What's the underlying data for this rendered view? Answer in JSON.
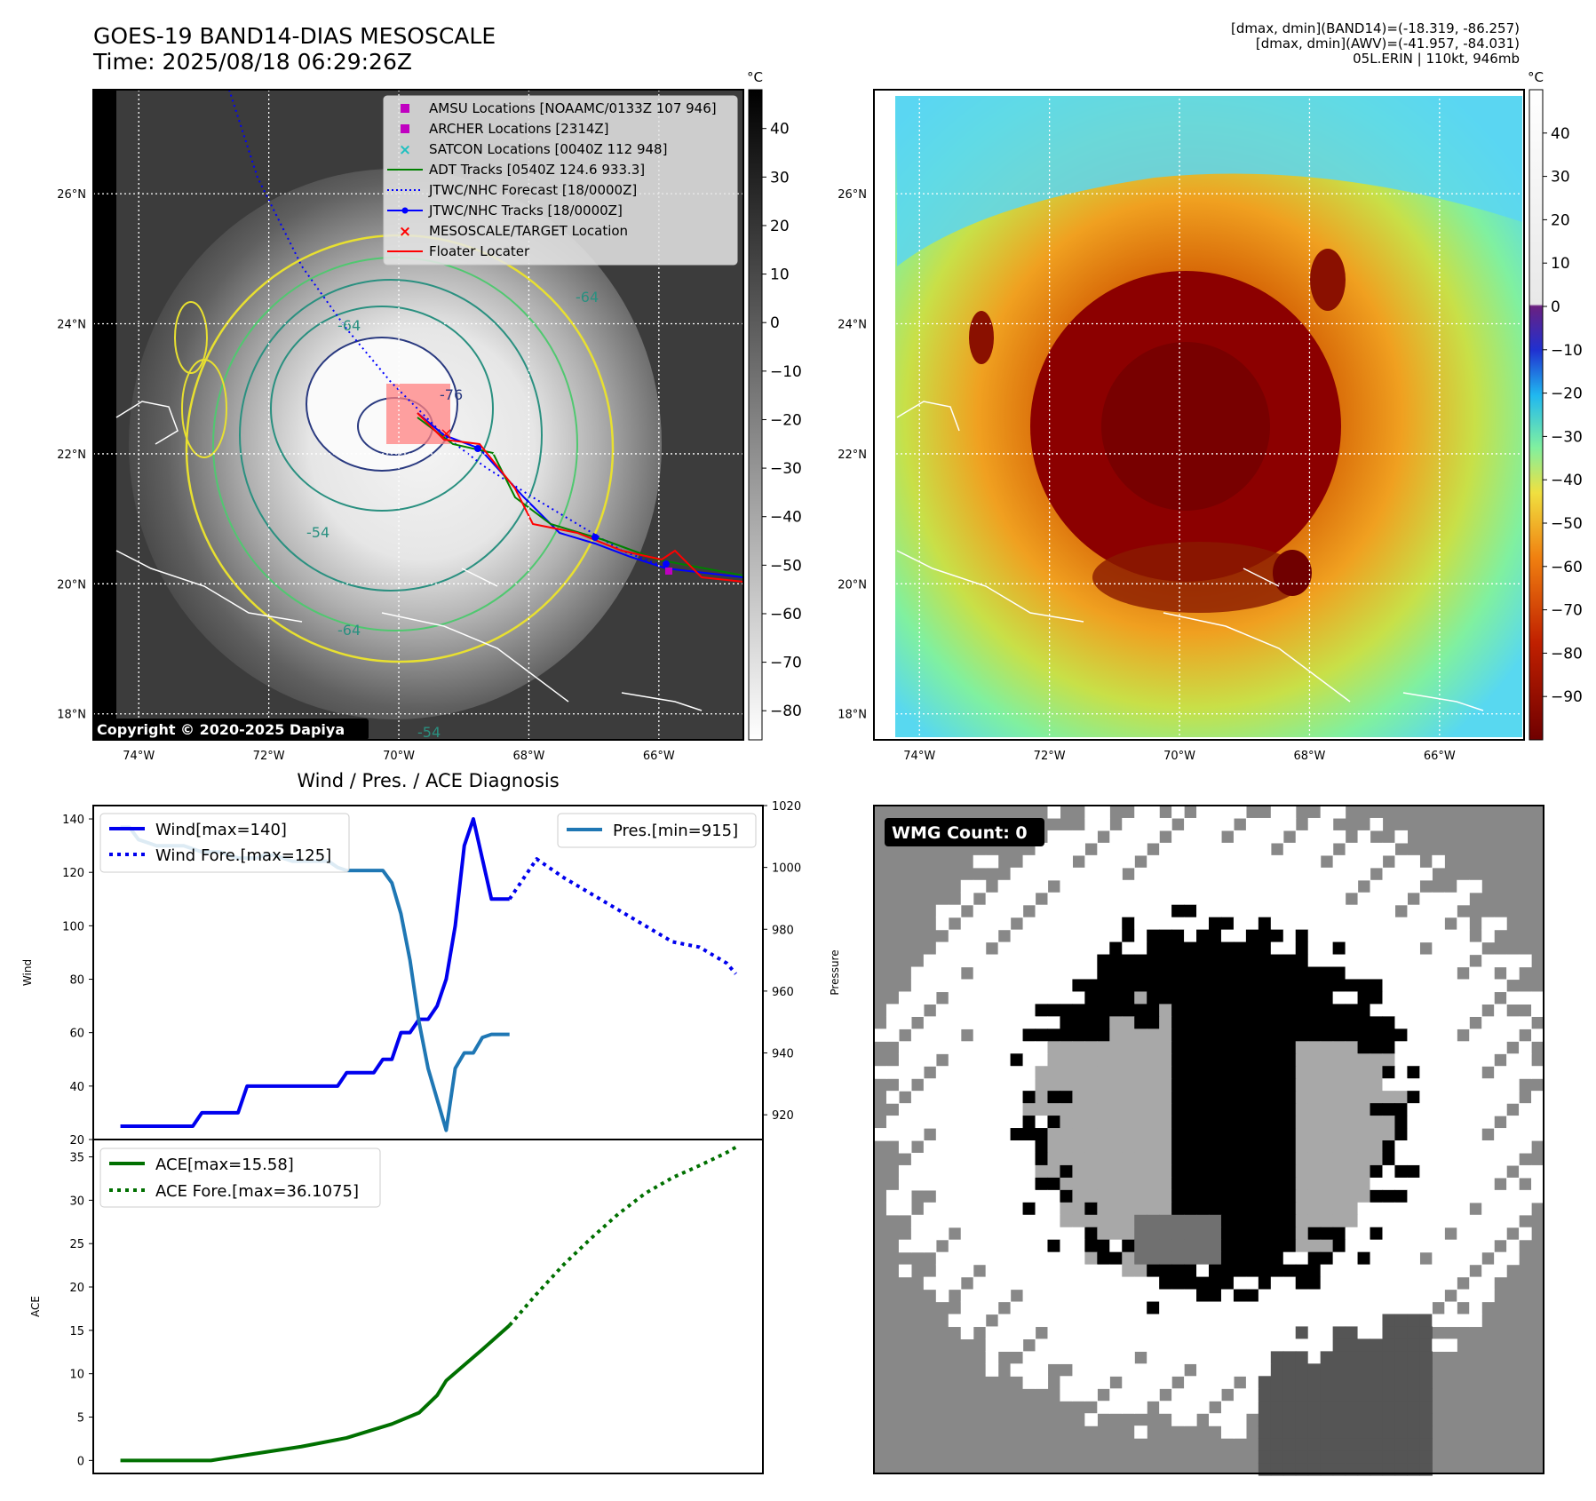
{
  "header": {
    "title_line1": "GOES-19 BAND14-DIAS MESOSCALE",
    "title_line2": "Time: 2025/08/18 06:29:26Z",
    "info_line1": "[dmax, dmin](BAND14)=(-18.319, -86.257)",
    "info_line2": "[dmax, dmin](AWV)=(-41.957, -84.031)",
    "info_line3": "05L.ERIN | 110kt, 946mb"
  },
  "map_axes": {
    "lat_labels": [
      "26°N",
      "24°N",
      "22°N",
      "20°N",
      "18°N"
    ],
    "lat_values": [
      26,
      24,
      22,
      20,
      18
    ],
    "lon_labels": [
      "74°W",
      "72°W",
      "70°W",
      "68°W",
      "66°W"
    ],
    "lon_values": [
      -74,
      -72,
      -70,
      -68,
      -66
    ],
    "lon_range": [
      -74.7,
      -64.7
    ],
    "lat_range": [
      17.6,
      27.6
    ]
  },
  "map1": {
    "copyright": "Copyright © 2020-2025 Dapiya",
    "legend": [
      {
        "label": "AMSU Locations [NOAAMC/0133Z 107 946]",
        "marker": "square",
        "color": "#c000c0"
      },
      {
        "label": "ARCHER Locations [2314Z]",
        "marker": "square",
        "color": "#c000c0"
      },
      {
        "label": "SATCON Locations [0040Z 112 948]",
        "marker": "x",
        "color": "#20c0c0"
      },
      {
        "label": "ADT Tracks [0540Z 124.6 933.3]",
        "marker": "line",
        "color": "#008000"
      },
      {
        "label": "JTWC/NHC Forecast [18/0000Z]",
        "marker": "dotted",
        "color": "#0000ff"
      },
      {
        "label": "JTWC/NHC Tracks [18/0000Z]",
        "marker": "line-dot",
        "color": "#0000ff"
      },
      {
        "label": "MESOSCALE/TARGET Location",
        "marker": "x",
        "color": "#ff0000"
      },
      {
        "label": "Floater Locater",
        "marker": "line",
        "color": "#ff0000"
      }
    ],
    "contour_labels": [
      "-64",
      "-76",
      "-64",
      "-54",
      "-64",
      "-54"
    ],
    "colorbar_unit": "°C",
    "colorbar_ticks": [
      "40",
      "30",
      "20",
      "10",
      "0",
      "−10",
      "−20",
      "−30",
      "−40",
      "−50",
      "−60",
      "−70",
      "−80"
    ],
    "colorbar_values": [
      40,
      30,
      20,
      10,
      0,
      -10,
      -20,
      -30,
      -40,
      -50,
      -60,
      -70,
      -80
    ],
    "colorbar_range": [
      -86,
      48
    ]
  },
  "map2": {
    "colorbar_unit": "°C",
    "colorbar_ticks": [
      "40",
      "30",
      "20",
      "10",
      "0",
      "−10",
      "−20",
      "−30",
      "−40",
      "−50",
      "−60",
      "−70",
      "−80",
      "−90"
    ],
    "colorbar_values": [
      40,
      30,
      20,
      10,
      0,
      -10,
      -20,
      -30,
      -40,
      -50,
      -60,
      -70,
      -80,
      -90
    ],
    "colorbar_range": [
      -100,
      50
    ]
  },
  "wmg": {
    "label": "WMG Count: 0"
  },
  "chart_data": [
    {
      "type": "line",
      "title": "Wind / Pres. / ACE Diagnosis",
      "ylabel": "Wind",
      "ylabel_right": "Pressure",
      "ylim": [
        20,
        145
      ],
      "ylim_right": [
        912,
        1020
      ],
      "yticks": [
        20,
        40,
        60,
        80,
        100,
        120,
        140
      ],
      "yticks_right": [
        920,
        940,
        960,
        980,
        1000,
        1020
      ],
      "x": [
        0,
        1,
        2,
        3,
        4,
        5,
        6,
        7,
        8,
        9,
        10,
        11,
        12,
        13,
        14,
        15,
        16,
        17,
        18,
        19,
        20,
        21,
        22,
        23,
        24,
        25,
        26,
        27,
        28,
        29,
        30,
        31,
        32,
        33,
        34,
        35,
        36,
        37,
        38,
        39,
        40,
        41,
        42,
        43,
        44,
        45,
        46,
        47,
        48,
        49,
        50,
        51,
        52,
        53,
        54,
        55,
        56,
        57,
        58,
        59,
        60,
        61,
        62,
        63,
        64,
        65,
        66,
        67,
        68
      ],
      "series": [
        {
          "name": "Wind[max=140]",
          "axis": "left",
          "style": "solid",
          "color": "#0000ee",
          "x": [
            0,
            1,
            2,
            3,
            4,
            5,
            6,
            7,
            8,
            9,
            10,
            11,
            12,
            13,
            14,
            15,
            16,
            17,
            18,
            19,
            20,
            21,
            22,
            23,
            24,
            25,
            26,
            27,
            28,
            29,
            30,
            31,
            32,
            33,
            34,
            35,
            36,
            37,
            38,
            39,
            40,
            41,
            42,
            43
          ],
          "values": [
            25,
            25,
            25,
            25,
            25,
            25,
            25,
            25,
            25,
            30,
            30,
            30,
            30,
            30,
            40,
            40,
            40,
            40,
            40,
            40,
            40,
            40,
            40,
            40,
            40,
            45,
            45,
            45,
            45,
            50,
            50,
            60,
            60,
            65,
            65,
            70,
            80,
            100,
            130,
            140,
            125,
            110,
            110,
            110
          ]
        },
        {
          "name": "Wind Fore.[max=125]",
          "axis": "left",
          "style": "dotted",
          "color": "#0000ee",
          "x": [
            43,
            46,
            49,
            52,
            55,
            58,
            61,
            64,
            67,
            68
          ],
          "values": [
            110,
            125,
            118,
            112,
            106,
            100,
            94,
            92,
            86,
            82
          ]
        },
        {
          "name": "Pres.[min=915]",
          "axis": "right",
          "style": "solid",
          "color": "#1f77b4",
          "x": [
            0,
            1,
            2,
            3,
            4,
            5,
            6,
            7,
            8,
            9,
            10,
            11,
            12,
            13,
            14,
            15,
            16,
            17,
            18,
            19,
            20,
            21,
            22,
            23,
            24,
            25,
            26,
            27,
            28,
            29,
            30,
            31,
            32,
            33,
            34,
            35,
            36,
            37,
            38,
            39,
            40,
            41,
            42,
            43
          ],
          "values": [
            1013,
            1013,
            1009,
            1008,
            1007,
            1007,
            1007,
            1007,
            1006,
            1005,
            1005,
            1005,
            1004,
            1003,
            1003,
            1003,
            1004,
            1004,
            1003,
            1002,
            1002,
            1002,
            1002,
            1002,
            1000,
            999,
            999,
            999,
            999,
            999,
            995,
            985,
            970,
            950,
            935,
            925,
            915,
            935,
            940,
            940,
            945,
            946,
            946,
            946
          ]
        }
      ]
    },
    {
      "type": "line",
      "ylabel": "ACE",
      "ylim": [
        -1.5,
        37
      ],
      "yticks": [
        0,
        5,
        10,
        15,
        20,
        25,
        30,
        35
      ],
      "series": [
        {
          "name": "ACE[max=15.58]",
          "style": "solid",
          "color": "#007000",
          "x": [
            0,
            5,
            10,
            15,
            20,
            25,
            30,
            33,
            35,
            36,
            38,
            40,
            43
          ],
          "values": [
            0,
            0,
            0,
            0.8,
            1.6,
            2.6,
            4.2,
            5.5,
            7.5,
            9.2,
            11,
            12.8,
            15.58
          ]
        },
        {
          "name": "ACE Fore.[max=36.1075]",
          "style": "dotted",
          "color": "#007000",
          "x": [
            43,
            46,
            49,
            52,
            55,
            58,
            61,
            64,
            67,
            68
          ],
          "values": [
            15.58,
            19.2,
            22.6,
            25.6,
            28.4,
            30.8,
            32.6,
            34.0,
            35.5,
            36.1075
          ]
        }
      ]
    }
  ]
}
